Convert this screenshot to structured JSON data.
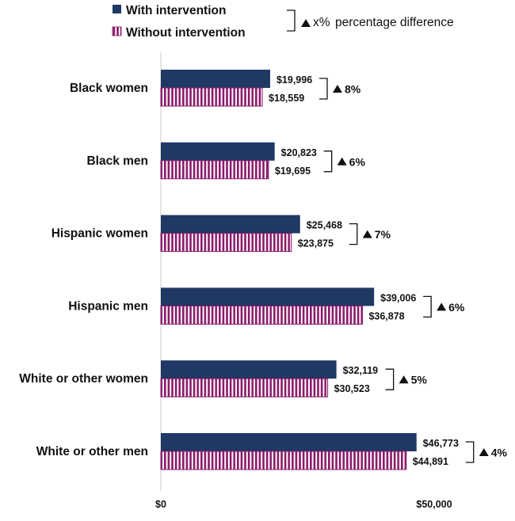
{
  "chart_data": {
    "type": "bar",
    "orientation": "horizontal",
    "categories": [
      "Black women",
      "Black men",
      "Hispanic women",
      "Hispanic men",
      "White or other women",
      "White or other men"
    ],
    "series": [
      {
        "name": "With intervention",
        "values": [
          19996,
          20823,
          25468,
          39006,
          32119,
          46773
        ],
        "labels": [
          "$19,996",
          "$20,823",
          "$25,468",
          "$39,006",
          "$32,119",
          "$46,773"
        ],
        "color": "#1f3864"
      },
      {
        "name": "Without intervention",
        "values": [
          18559,
          19695,
          23875,
          36878,
          30523,
          44891
        ],
        "labels": [
          "$18,559",
          "$19,695",
          "$23,875",
          "$36,878",
          "$30,523",
          "$44,891"
        ],
        "color": "#8b1a6b"
      }
    ],
    "differences": [
      "8%",
      "6%",
      "7%",
      "6%",
      "5%",
      "4%"
    ],
    "legend_note": {
      "symbol": "x%",
      "text": "percentage difference"
    },
    "xlim": [
      0,
      50000
    ],
    "xticks": [
      {
        "value": 0,
        "label": "$0"
      },
      {
        "value": 50000,
        "label": "$50,000"
      }
    ],
    "legend_position": "top",
    "grid": false
  }
}
